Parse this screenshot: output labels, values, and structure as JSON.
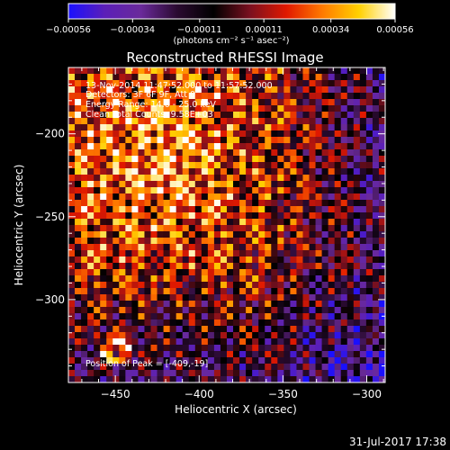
{
  "chart_data": {
    "type": "heatmap",
    "title": "Reconstructed RHESSI Image",
    "xlabel": "Heliocentric X (arcsec)",
    "ylabel": "Heliocentric Y (arcsec)",
    "xlim": [
      -478,
      -289
    ],
    "ylim": [
      -350,
      -160
    ],
    "x_ticks": [
      -450,
      -400,
      -350,
      -300
    ],
    "y_ticks": [
      -300,
      -250,
      -200
    ],
    "x_tick_labels": [
      "−450",
      "−400",
      "−350",
      "−300"
    ],
    "y_tick_labels": [
      "−300",
      "−250",
      "−200"
    ],
    "colorbar": {
      "min": -0.00056,
      "max": 0.00056,
      "ticks": [
        -0.00056,
        -0.00034,
        -0.00011,
        0.00011,
        0.00034,
        0.00056
      ],
      "tick_labels": [
        "−0.00056",
        "−0.00034",
        "−0.00011",
        "0.00011",
        "0.00034",
        "0.00056"
      ],
      "unit_label": "(photons cm⁻² s⁻¹ asec⁻²)",
      "colors": [
        "#1a10ff",
        "#5b1fb8",
        "#6a2a9a",
        "#2a0a30",
        "#000000",
        "#7a1020",
        "#e01800",
        "#ff7a00",
        "#ffd000",
        "#ffffff"
      ]
    },
    "annotations": [
      "13-Nov-2014 11:47:52.000 to 11:57:52.000",
      "Detectors: 3F 6F 9F, Att 0",
      "Energy Range: 14.0 - 25.0 keV",
      "Clean   Total Counts: 9.58E+03"
    ],
    "peak_label": "Position of Peak = [-409,-19]",
    "peak": [
      -450,
      -330
    ]
  },
  "footer": {
    "timestamp": "31-Jul-2017 17:38"
  }
}
